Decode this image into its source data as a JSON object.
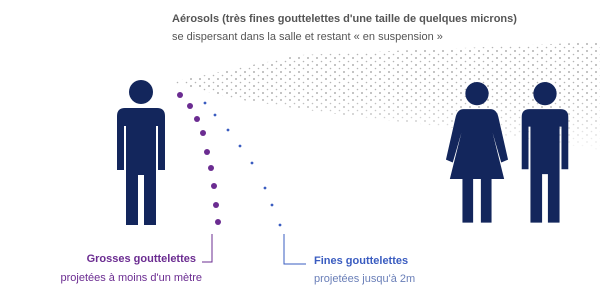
{
  "aerosol": {
    "line1": "Aérosols (très fines gouttelettes d'une taille de quelques microns)",
    "line2": "se dispersant dans la salle et restant « en suspension »"
  },
  "large_droplets": {
    "title": "Grosses gouttelettes",
    "detail": "projetées à moins d'un mètre"
  },
  "fine_droplets": {
    "title": "Fines gouttelettes",
    "detail": "projetées jusqu'à 2m"
  }
}
